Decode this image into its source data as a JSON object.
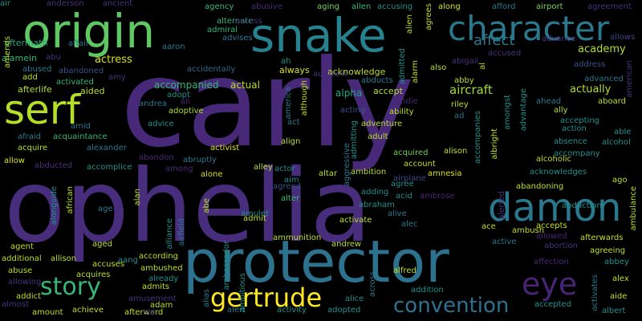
{
  "words": [
    {
      "text": "carly",
      "color": "#482878"
    },
    {
      "text": "ophelia",
      "color": "#472d7b"
    },
    {
      "text": "protector",
      "color": "#2c728e"
    },
    {
      "text": "snake",
      "color": "#26828e"
    },
    {
      "text": "origin",
      "color": "#5ec962"
    },
    {
      "text": "character",
      "color": "#2a788e"
    },
    {
      "text": "damon",
      "color": "#2a788e"
    },
    {
      "text": "serf",
      "color": "#b5de2b"
    },
    {
      "text": "eye",
      "color": "#482475"
    },
    {
      "text": "gertrude",
      "color": "#fde725"
    },
    {
      "text": "story",
      "color": "#35b779"
    },
    {
      "text": "convention",
      "color": "#2c728e"
    },
    {
      "text": "affect",
      "color": "#2a788e"
    },
    {
      "text": "aircraft",
      "color": "#a0da39"
    },
    {
      "text": "academy",
      "color": "#b5de2b"
    },
    {
      "text": "actually",
      "color": "#b5de2b"
    },
    {
      "text": "actress",
      "color": "#d8e219"
    },
    {
      "text": "accompanied",
      "color": "#35b779"
    },
    {
      "text": "actual",
      "color": "#bddf26"
    },
    {
      "text": "alpha",
      "color": "#22a884"
    },
    {
      "text": "accept",
      "color": "#bddf26"
    },
    {
      "text": "afterlife",
      "color": "#b5de2b"
    },
    {
      "text": "aided",
      "color": "#c2df23"
    },
    {
      "text": "always",
      "color": "#d8e219"
    },
    {
      "text": "acknowledge",
      "color": "#bddf26"
    },
    {
      "text": "alamein",
      "color": "#35b779"
    },
    {
      "text": "aftermath",
      "color": "#22a884"
    },
    {
      "text": "affair",
      "color": "#2a788e"
    },
    {
      "text": "aaron",
      "color": "#2a788e"
    },
    {
      "text": "accidentally",
      "color": "#31688e"
    },
    {
      "text": "advises",
      "color": "#2a788e"
    },
    {
      "text": "admiral",
      "color": "#35b779"
    },
    {
      "text": "alternate",
      "color": "#35b779"
    },
    {
      "text": "access",
      "color": "#443983"
    },
    {
      "text": "agency",
      "color": "#35b779"
    },
    {
      "text": "abusive",
      "color": "#482878"
    },
    {
      "text": "aging",
      "color": "#7ad151"
    },
    {
      "text": "allen",
      "color": "#35b779"
    },
    {
      "text": "accusing",
      "color": "#21918c"
    },
    {
      "text": "along",
      "color": "#d8e219"
    },
    {
      "text": "afford",
      "color": "#2a788e"
    },
    {
      "text": "airport",
      "color": "#7ad151"
    },
    {
      "text": "agreement",
      "color": "#46327e"
    },
    {
      "text": "anderson",
      "color": "#46327e"
    },
    {
      "text": "ancient",
      "color": "#46327e"
    },
    {
      "text": "advance",
      "color": "#46327e"
    },
    {
      "text": "allows",
      "color": "#414487"
    },
    {
      "text": "address",
      "color": "#3b528b"
    },
    {
      "text": "advanced",
      "color": "#2a788e"
    },
    {
      "text": "accused",
      "color": "#46327e"
    },
    {
      "text": "abigail",
      "color": "#46327e"
    },
    {
      "text": "abby",
      "color": "#bddf26"
    },
    {
      "text": "also",
      "color": "#bddf26"
    },
    {
      "text": "riley",
      "color": "#bddf26"
    },
    {
      "text": "ability",
      "color": "#bddf26"
    },
    {
      "text": "ad",
      "color": "#2a788e"
    },
    {
      "text": "abducts",
      "color": "#2a788e"
    },
    {
      "text": "acting",
      "color": "#3b528b"
    },
    {
      "text": "andie",
      "color": "#482878"
    },
    {
      "text": "act",
      "color": "#2a788e"
    },
    {
      "text": "adventure",
      "color": "#b5de2b"
    },
    {
      "text": "adult",
      "color": "#bddf26"
    },
    {
      "text": "acquired",
      "color": "#6ece58"
    },
    {
      "text": "alison",
      "color": "#c2df23"
    },
    {
      "text": "account",
      "color": "#c2df23"
    },
    {
      "text": "airplane",
      "color": "#3e4989"
    },
    {
      "text": "ambition",
      "color": "#bddf26"
    },
    {
      "text": "amnesia",
      "color": "#d8e219"
    },
    {
      "text": "agree",
      "color": "#21918c"
    },
    {
      "text": "adding",
      "color": "#21918c"
    },
    {
      "text": "ambrose",
      "color": "#482878"
    },
    {
      "text": "abraham",
      "color": "#21918c"
    },
    {
      "text": "acid",
      "color": "#21918c"
    },
    {
      "text": "alive",
      "color": "#2a788e"
    },
    {
      "text": "alec",
      "color": "#2a788e"
    },
    {
      "text": "activate",
      "color": "#bddf26"
    },
    {
      "text": "altar",
      "color": "#bddf26"
    },
    {
      "text": "alter",
      "color": "#35b779"
    },
    {
      "text": "agreed",
      "color": "#3b528b"
    },
    {
      "text": "aim",
      "color": "#21918c"
    },
    {
      "text": "actor",
      "color": "#21918c"
    },
    {
      "text": "align",
      "color": "#bddf26"
    },
    {
      "text": "activist",
      "color": "#d8e219"
    },
    {
      "text": "alley",
      "color": "#b5de2b"
    },
    {
      "text": "abruptly",
      "color": "#2a788e"
    },
    {
      "text": "alone",
      "color": "#d8e219"
    },
    {
      "text": "accomplice",
      "color": "#21918c"
    },
    {
      "text": "abandon",
      "color": "#482878"
    },
    {
      "text": "among",
      "color": "#482878"
    },
    {
      "text": "abducted",
      "color": "#46327e"
    },
    {
      "text": "alexander",
      "color": "#2a788e"
    },
    {
      "text": "acquire",
      "color": "#b5de2b"
    },
    {
      "text": "allow",
      "color": "#d8e219"
    },
    {
      "text": "afraid",
      "color": "#2a788e"
    },
    {
      "text": "acquaintance",
      "color": "#35b779"
    },
    {
      "text": "amid",
      "color": "#2a788e"
    },
    {
      "text": "advice",
      "color": "#21918c"
    },
    {
      "text": "adoptive",
      "color": "#b5de2b"
    },
    {
      "text": "adopt",
      "color": "#21918c"
    },
    {
      "text": "ali",
      "color": "#482878"
    },
    {
      "text": "andrea",
      "color": "#2a788e"
    },
    {
      "text": "abused",
      "color": "#2a788e"
    },
    {
      "text": "abandoned",
      "color": "#3b528b"
    },
    {
      "text": "add",
      "color": "#bddf26"
    },
    {
      "text": "activated",
      "color": "#35b779"
    },
    {
      "text": "amy",
      "color": "#46327e"
    },
    {
      "text": "abu",
      "color": "#46327e"
    },
    {
      "text": "amends",
      "color": "#bddf26"
    },
    {
      "text": "advantage",
      "color": "#21918c"
    },
    {
      "text": "amongst",
      "color": "#21918c"
    },
    {
      "text": "albright",
      "color": "#c2df23"
    },
    {
      "text": "accompanies",
      "color": "#21918c"
    },
    {
      "text": "admitting",
      "color": "#21918c"
    },
    {
      "text": "aggressive",
      "color": "#2a788e"
    },
    {
      "text": "ahead",
      "color": "#2a788e"
    },
    {
      "text": "aboard",
      "color": "#bddf26"
    },
    {
      "text": "accepting",
      "color": "#21918c"
    },
    {
      "text": "action",
      "color": "#21918c"
    },
    {
      "text": "able",
      "color": "#21918c"
    },
    {
      "text": "absence",
      "color": "#21918c"
    },
    {
      "text": "alcohol",
      "color": "#21918c"
    },
    {
      "text": "accompany",
      "color": "#21918c"
    },
    {
      "text": "alcoholic",
      "color": "#bddf26"
    },
    {
      "text": "acknowledges",
      "color": "#21918c"
    },
    {
      "text": "ago",
      "color": "#bddf26"
    },
    {
      "text": "abandoning",
      "color": "#bddf26"
    },
    {
      "text": "abduction",
      "color": "#21918c"
    },
    {
      "text": "ambulance",
      "color": "#b5de2b"
    },
    {
      "text": "american",
      "color": "#46327e"
    },
    {
      "text": "ally",
      "color": "#b5de2b"
    },
    {
      "text": "accepts",
      "color": "#c2df23"
    },
    {
      "text": "allowed",
      "color": "#482878"
    },
    {
      "text": "afterwards",
      "color": "#bddf26"
    },
    {
      "text": "abortion",
      "color": "#46327e"
    },
    {
      "text": "agreeing",
      "color": "#bddf26"
    },
    {
      "text": "active",
      "color": "#2a788e"
    },
    {
      "text": "ace",
      "color": "#bddf26"
    },
    {
      "text": "ambush",
      "color": "#c2df23"
    },
    {
      "text": "affection",
      "color": "#482878"
    },
    {
      "text": "abbey",
      "color": "#21918c"
    },
    {
      "text": "alex",
      "color": "#c2df23"
    },
    {
      "text": "aide",
      "color": "#c2df23"
    },
    {
      "text": "albert",
      "color": "#21918c"
    },
    {
      "text": "accepted",
      "color": "#21918c"
    },
    {
      "text": "activates",
      "color": "#2a788e"
    },
    {
      "text": "alfred",
      "color": "#bddf26"
    },
    {
      "text": "addition",
      "color": "#21918c"
    },
    {
      "text": "alice",
      "color": "#21918c"
    },
    {
      "text": "adopted",
      "color": "#21918c"
    },
    {
      "text": "activity",
      "color": "#21918c"
    },
    {
      "text": "alert",
      "color": "#2a788e"
    },
    {
      "text": "alias",
      "color": "#2a788e"
    },
    {
      "text": "across",
      "color": "#2a788e"
    },
    {
      "text": "andrew",
      "color": "#bddf26"
    },
    {
      "text": "ammunition",
      "color": "#bddf26"
    },
    {
      "text": "amulet",
      "color": "#21918c"
    },
    {
      "text": "admit",
      "color": "#bddf26"
    },
    {
      "text": "abe",
      "color": "#bddf26"
    },
    {
      "text": "ambassador",
      "color": "#21918c"
    },
    {
      "text": "ambitious",
      "color": "#21918c"
    },
    {
      "text": "age",
      "color": "#2a788e"
    },
    {
      "text": "alan",
      "color": "#bddf26"
    },
    {
      "text": "alliance",
      "color": "#21918c"
    },
    {
      "text": "airfield",
      "color": "#2a788e"
    },
    {
      "text": "already",
      "color": "#21918c"
    },
    {
      "text": "admits",
      "color": "#bddf26"
    },
    {
      "text": "ambushed",
      "color": "#bddf26"
    },
    {
      "text": "according",
      "color": "#bddf26"
    },
    {
      "text": "aang",
      "color": "#21918c"
    },
    {
      "text": "accuses",
      "color": "#bddf26"
    },
    {
      "text": "aged",
      "color": "#bddf26"
    },
    {
      "text": "allison",
      "color": "#bddf26"
    },
    {
      "text": "agent",
      "color": "#bddf26"
    },
    {
      "text": "additional",
      "color": "#bddf26"
    },
    {
      "text": "abuse",
      "color": "#bddf26"
    },
    {
      "text": "acquires",
      "color": "#bddf26"
    },
    {
      "text": "allowing",
      "color": "#46327e"
    },
    {
      "text": "addict",
      "color": "#bddf26"
    },
    {
      "text": "almost",
      "color": "#46327e"
    },
    {
      "text": "amount",
      "color": "#bddf26"
    },
    {
      "text": "achieve",
      "color": "#bddf26"
    },
    {
      "text": "afterward",
      "color": "#bddf26"
    },
    {
      "text": "aid",
      "color": "#46327e"
    },
    {
      "text": "amusement",
      "color": "#46327e"
    },
    {
      "text": "adam",
      "color": "#bddf26"
    },
    {
      "text": "african",
      "color": "#bddf26"
    },
    {
      "text": "alongside",
      "color": "#21918c"
    },
    {
      "text": "america",
      "color": "#2a788e"
    },
    {
      "text": "although",
      "color": "#bddf26"
    },
    {
      "text": "accident",
      "color": "#46327e"
    },
    {
      "text": "alarm",
      "color": "#bddf26"
    },
    {
      "text": "admitted",
      "color": "#21918c"
    },
    {
      "text": "agrees",
      "color": "#bddf26"
    },
    {
      "text": "alien",
      "color": "#bddf26"
    },
    {
      "text": "ah",
      "color": "#21918c"
    },
    {
      "text": "al",
      "color": "#bddf26"
    },
    {
      "text": "ana",
      "color": "#46327e"
    },
    {
      "text": "alerted",
      "color": "#46327e"
    },
    {
      "text": "air",
      "color": "#21918c"
    }
  ]
}
